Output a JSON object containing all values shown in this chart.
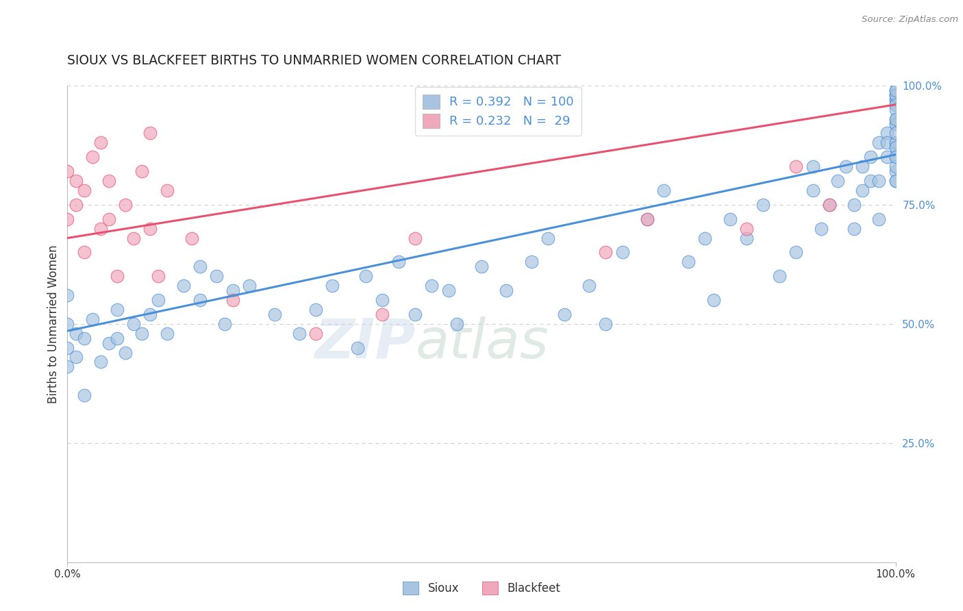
{
  "title": "SIOUX VS BLACKFEET BIRTHS TO UNMARRIED WOMEN CORRELATION CHART",
  "source": "Source: ZipAtlas.com",
  "ylabel": "Births to Unmarried Women",
  "right_yticks": [
    "100.0%",
    "75.0%",
    "50.0%",
    "25.0%"
  ],
  "right_ytick_vals": [
    1.0,
    0.75,
    0.5,
    0.25
  ],
  "watermark_line1": "ZIP",
  "watermark_line2": "atlas",
  "sioux_R": 0.392,
  "sioux_N": 100,
  "blackfeet_R": 0.232,
  "blackfeet_N": 29,
  "sioux_color": "#a8c4e0",
  "blackfeet_color": "#f0a8bc",
  "sioux_line_color": "#4a90d9",
  "blackfeet_line_color": "#e85070",
  "sioux_line_x0": 0.0,
  "sioux_line_y0": 0.485,
  "sioux_line_x1": 1.0,
  "sioux_line_y1": 0.855,
  "blackfeet_line_x0": 0.0,
  "blackfeet_line_y0": 0.68,
  "blackfeet_line_x1": 1.0,
  "blackfeet_line_y1": 0.96,
  "sioux_x": [
    0.0,
    0.0,
    0.0,
    0.0,
    0.01,
    0.01,
    0.02,
    0.02,
    0.03,
    0.04,
    0.05,
    0.06,
    0.06,
    0.07,
    0.08,
    0.09,
    0.1,
    0.11,
    0.12,
    0.14,
    0.16,
    0.16,
    0.18,
    0.19,
    0.2,
    0.22,
    0.25,
    0.28,
    0.3,
    0.32,
    0.35,
    0.36,
    0.38,
    0.4,
    0.42,
    0.44,
    0.46,
    0.47,
    0.5,
    0.53,
    0.56,
    0.58,
    0.6,
    0.63,
    0.65,
    0.67,
    0.7,
    0.72,
    0.75,
    0.77,
    0.78,
    0.8,
    0.82,
    0.84,
    0.86,
    0.88,
    0.9,
    0.9,
    0.91,
    0.92,
    0.93,
    0.94,
    0.95,
    0.95,
    0.96,
    0.96,
    0.97,
    0.97,
    0.98,
    0.98,
    0.98,
    0.99,
    0.99,
    0.99,
    1.0,
    1.0,
    1.0,
    1.0,
    1.0,
    1.0,
    1.0,
    1.0,
    1.0,
    1.0,
    1.0,
    1.0,
    1.0,
    1.0,
    1.0,
    1.0,
    1.0,
    1.0,
    1.0,
    1.0,
    1.0,
    1.0,
    1.0,
    1.0,
    1.0,
    1.0
  ],
  "sioux_y": [
    0.41,
    0.45,
    0.5,
    0.56,
    0.43,
    0.48,
    0.35,
    0.47,
    0.51,
    0.42,
    0.46,
    0.53,
    0.47,
    0.44,
    0.5,
    0.48,
    0.52,
    0.55,
    0.48,
    0.58,
    0.55,
    0.62,
    0.6,
    0.5,
    0.57,
    0.58,
    0.52,
    0.48,
    0.53,
    0.58,
    0.45,
    0.6,
    0.55,
    0.63,
    0.52,
    0.58,
    0.57,
    0.5,
    0.62,
    0.57,
    0.63,
    0.68,
    0.52,
    0.58,
    0.5,
    0.65,
    0.72,
    0.78,
    0.63,
    0.68,
    0.55,
    0.72,
    0.68,
    0.75,
    0.6,
    0.65,
    0.78,
    0.83,
    0.7,
    0.75,
    0.8,
    0.83,
    0.7,
    0.75,
    0.78,
    0.83,
    0.8,
    0.85,
    0.88,
    0.72,
    0.8,
    0.85,
    0.9,
    0.88,
    0.87,
    0.82,
    0.88,
    0.93,
    0.97,
    0.98,
    0.99,
    0.99,
    0.97,
    0.96,
    0.92,
    0.98,
    0.92,
    0.88,
    0.85,
    0.83,
    0.8,
    0.98,
    0.96,
    0.99,
    0.95,
    0.93,
    0.9,
    0.87,
    0.85,
    0.8
  ],
  "blackfeet_x": [
    0.0,
    0.0,
    0.01,
    0.01,
    0.02,
    0.02,
    0.03,
    0.04,
    0.04,
    0.05,
    0.05,
    0.06,
    0.07,
    0.08,
    0.09,
    0.1,
    0.1,
    0.11,
    0.12,
    0.15,
    0.2,
    0.3,
    0.38,
    0.42,
    0.65,
    0.7,
    0.82,
    0.88,
    0.92
  ],
  "blackfeet_y": [
    0.72,
    0.82,
    0.75,
    0.8,
    0.65,
    0.78,
    0.85,
    0.7,
    0.88,
    0.72,
    0.8,
    0.6,
    0.75,
    0.68,
    0.82,
    0.7,
    0.9,
    0.6,
    0.78,
    0.68,
    0.55,
    0.48,
    0.52,
    0.68,
    0.65,
    0.72,
    0.7,
    0.83,
    0.75
  ],
  "background_color": "#ffffff",
  "grid_color": "#d0d0d0",
  "xlim": [
    0.0,
    1.0
  ],
  "ylim": [
    0.0,
    1.0
  ]
}
